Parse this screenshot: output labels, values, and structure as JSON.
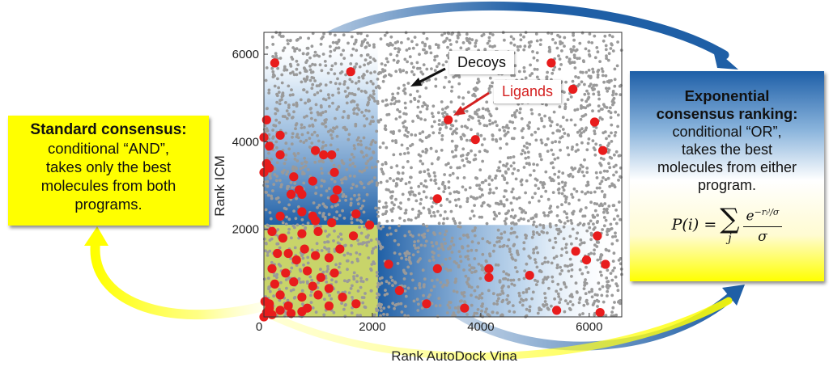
{
  "figure": {
    "left_box": {
      "heading": "Standard consensus:",
      "lines": [
        "conditional “AND”,",
        "takes only the best",
        "molecules from both",
        "programs."
      ]
    },
    "right_box": {
      "heading_line1": "Exponential",
      "heading_line2": "consensus ranking:",
      "lines": [
        "conditional “OR”,",
        "takes the best",
        "molecules from either",
        "program."
      ],
      "formula": {
        "lhs": "P(i) =",
        "sum_symbol": "∑",
        "sum_index": "j",
        "numerator": "e",
        "exponent": "−rᵢʲ/σ",
        "denominator": "σ"
      }
    },
    "callouts": {
      "decoys": "Decoys",
      "ligands": "Ligands"
    },
    "colors": {
      "decoy": "#9a9a9a",
      "ligand": "#e81c1c",
      "and_region": "#c8d46a",
      "or_region": "#2e6db4",
      "left_box": "#ffff00",
      "arrow_blue": "#1f5fa6",
      "arrow_yellow": "#ffff00"
    }
  },
  "chart_data": {
    "type": "scatter",
    "xlabel": "Rank AutoDock Vina",
    "ylabel": "Rank ICM",
    "xlim": [
      0,
      6600
    ],
    "ylim": [
      0,
      6500
    ],
    "xticks": [
      "0",
      "2000",
      "4000",
      "6000"
    ],
    "yticks": [
      "2000",
      "4000",
      "6000"
    ],
    "x_tick_values": [
      0,
      2000,
      4000,
      6000
    ],
    "y_tick_values": [
      2000,
      4000,
      6000
    ],
    "grid": false,
    "regions": [
      {
        "name": "AND",
        "x": [
          0,
          2100
        ],
        "y": [
          0,
          2100
        ]
      },
      {
        "name": "OR-ICM",
        "x": [
          0,
          2100
        ],
        "y": [
          0,
          6500
        ]
      },
      {
        "name": "OR-Vina",
        "x": [
          0,
          6600
        ],
        "y": [
          0,
          2100
        ]
      }
    ],
    "series": [
      {
        "name": "Decoys",
        "color": "#9a9a9a",
        "marker": "small-dot",
        "count_approx": 3000
      },
      {
        "name": "Ligands",
        "color": "#e81c1c",
        "marker": "large-dot",
        "points": [
          [
            200,
            5800
          ],
          [
            1600,
            5600
          ],
          [
            5300,
            5800
          ],
          [
            5700,
            5200
          ],
          [
            3400,
            4500
          ],
          [
            3900,
            4050
          ],
          [
            6100,
            4450
          ],
          [
            6250,
            3800
          ],
          [
            3200,
            2700
          ],
          [
            6150,
            1850
          ],
          [
            5750,
            1500
          ],
          [
            5950,
            1300
          ],
          [
            6300,
            1200
          ],
          [
            2300,
            1200
          ],
          [
            3200,
            1100
          ],
          [
            4150,
            1100
          ],
          [
            4150,
            900
          ],
          [
            4900,
            950
          ],
          [
            2500,
            600
          ],
          [
            3000,
            300
          ],
          [
            3700,
            200
          ],
          [
            5400,
            150
          ],
          [
            6200,
            100
          ],
          [
            50,
            4500
          ],
          [
            0,
            4100
          ],
          [
            300,
            4150
          ],
          [
            100,
            3900
          ],
          [
            300,
            3700
          ],
          [
            50,
            3500
          ],
          [
            100,
            3400
          ],
          [
            0,
            3300
          ],
          [
            550,
            3200
          ],
          [
            950,
            3800
          ],
          [
            1100,
            3700
          ],
          [
            1250,
            3700
          ],
          [
            1300,
            3300
          ],
          [
            650,
            2900
          ],
          [
            700,
            2800
          ],
          [
            500,
            2800
          ],
          [
            1350,
            2900
          ],
          [
            900,
            3100
          ],
          [
            1300,
            2700
          ],
          [
            1250,
            2150
          ],
          [
            300,
            2300
          ],
          [
            700,
            2400
          ],
          [
            950,
            2200
          ],
          [
            900,
            2300
          ],
          [
            1700,
            2350
          ],
          [
            1950,
            2100
          ],
          [
            150,
            1950
          ],
          [
            350,
            1800
          ],
          [
            700,
            1900
          ],
          [
            1000,
            1950
          ],
          [
            1650,
            1850
          ],
          [
            250,
            1450
          ],
          [
            450,
            1450
          ],
          [
            750,
            1550
          ],
          [
            600,
            1300
          ],
          [
            950,
            1400
          ],
          [
            1200,
            1350
          ],
          [
            1400,
            1550
          ],
          [
            150,
            1100
          ],
          [
            400,
            1000
          ],
          [
            800,
            1050
          ],
          [
            1050,
            900
          ],
          [
            1300,
            1000
          ],
          [
            200,
            750
          ],
          [
            550,
            800
          ],
          [
            900,
            700
          ],
          [
            1200,
            650
          ],
          [
            300,
            500
          ],
          [
            700,
            450
          ],
          [
            1000,
            500
          ],
          [
            1450,
            450
          ],
          [
            100,
            300
          ],
          [
            450,
            250
          ],
          [
            800,
            200
          ],
          [
            1200,
            250
          ],
          [
            1700,
            300
          ],
          [
            50,
            100
          ],
          [
            150,
            50
          ],
          [
            300,
            150
          ],
          [
            500,
            80
          ],
          [
            700,
            120
          ],
          [
            0,
            0
          ],
          [
            100,
            200
          ],
          [
            20,
            350
          ]
        ]
      }
    ]
  }
}
